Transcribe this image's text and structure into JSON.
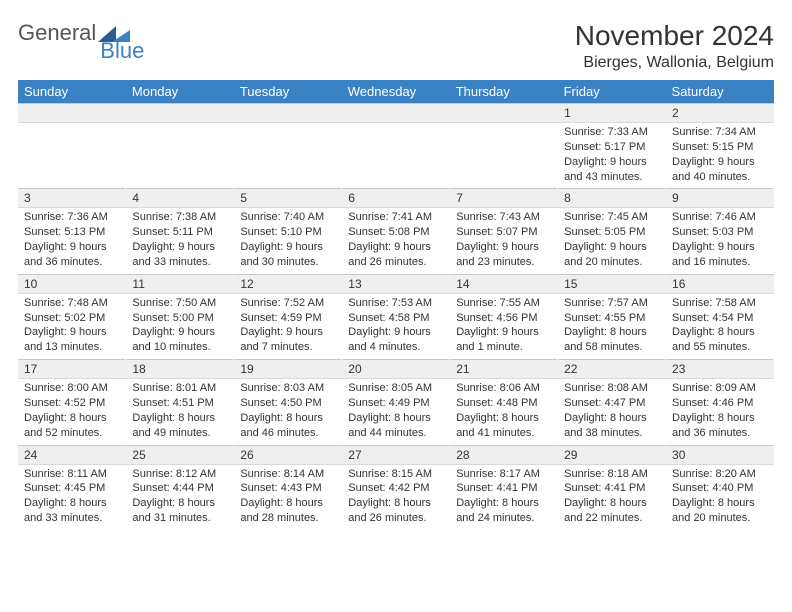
{
  "logo": {
    "part1": "General",
    "part2": "Blue"
  },
  "header": {
    "month": "November 2024",
    "location": "Bierges, Wallonia, Belgium"
  },
  "columns": [
    "Sunday",
    "Monday",
    "Tuesday",
    "Wednesday",
    "Thursday",
    "Friday",
    "Saturday"
  ],
  "colors": {
    "header_bg": "#3b82c4",
    "header_text": "#ffffff",
    "daynum_bg": "#efefef",
    "text": "#222222"
  },
  "fonts": {
    "month_size": 28,
    "location_size": 16,
    "dayheader_size": 13,
    "daynum_size": 12,
    "body_size": 11
  },
  "weeks": [
    {
      "nums": [
        "",
        "",
        "",
        "",
        "",
        "1",
        "2"
      ],
      "cells": [
        {
          "sunrise": "",
          "sunset": "",
          "daylight": ""
        },
        {
          "sunrise": "",
          "sunset": "",
          "daylight": ""
        },
        {
          "sunrise": "",
          "sunset": "",
          "daylight": ""
        },
        {
          "sunrise": "",
          "sunset": "",
          "daylight": ""
        },
        {
          "sunrise": "",
          "sunset": "",
          "daylight": ""
        },
        {
          "sunrise": "Sunrise: 7:33 AM",
          "sunset": "Sunset: 5:17 PM",
          "daylight": "Daylight: 9 hours and 43 minutes."
        },
        {
          "sunrise": "Sunrise: 7:34 AM",
          "sunset": "Sunset: 5:15 PM",
          "daylight": "Daylight: 9 hours and 40 minutes."
        }
      ]
    },
    {
      "nums": [
        "3",
        "4",
        "5",
        "6",
        "7",
        "8",
        "9"
      ],
      "cells": [
        {
          "sunrise": "Sunrise: 7:36 AM",
          "sunset": "Sunset: 5:13 PM",
          "daylight": "Daylight: 9 hours and 36 minutes."
        },
        {
          "sunrise": "Sunrise: 7:38 AM",
          "sunset": "Sunset: 5:11 PM",
          "daylight": "Daylight: 9 hours and 33 minutes."
        },
        {
          "sunrise": "Sunrise: 7:40 AM",
          "sunset": "Sunset: 5:10 PM",
          "daylight": "Daylight: 9 hours and 30 minutes."
        },
        {
          "sunrise": "Sunrise: 7:41 AM",
          "sunset": "Sunset: 5:08 PM",
          "daylight": "Daylight: 9 hours and 26 minutes."
        },
        {
          "sunrise": "Sunrise: 7:43 AM",
          "sunset": "Sunset: 5:07 PM",
          "daylight": "Daylight: 9 hours and 23 minutes."
        },
        {
          "sunrise": "Sunrise: 7:45 AM",
          "sunset": "Sunset: 5:05 PM",
          "daylight": "Daylight: 9 hours and 20 minutes."
        },
        {
          "sunrise": "Sunrise: 7:46 AM",
          "sunset": "Sunset: 5:03 PM",
          "daylight": "Daylight: 9 hours and 16 minutes."
        }
      ]
    },
    {
      "nums": [
        "10",
        "11",
        "12",
        "13",
        "14",
        "15",
        "16"
      ],
      "cells": [
        {
          "sunrise": "Sunrise: 7:48 AM",
          "sunset": "Sunset: 5:02 PM",
          "daylight": "Daylight: 9 hours and 13 minutes."
        },
        {
          "sunrise": "Sunrise: 7:50 AM",
          "sunset": "Sunset: 5:00 PM",
          "daylight": "Daylight: 9 hours and 10 minutes."
        },
        {
          "sunrise": "Sunrise: 7:52 AM",
          "sunset": "Sunset: 4:59 PM",
          "daylight": "Daylight: 9 hours and 7 minutes."
        },
        {
          "sunrise": "Sunrise: 7:53 AM",
          "sunset": "Sunset: 4:58 PM",
          "daylight": "Daylight: 9 hours and 4 minutes."
        },
        {
          "sunrise": "Sunrise: 7:55 AM",
          "sunset": "Sunset: 4:56 PM",
          "daylight": "Daylight: 9 hours and 1 minute."
        },
        {
          "sunrise": "Sunrise: 7:57 AM",
          "sunset": "Sunset: 4:55 PM",
          "daylight": "Daylight: 8 hours and 58 minutes."
        },
        {
          "sunrise": "Sunrise: 7:58 AM",
          "sunset": "Sunset: 4:54 PM",
          "daylight": "Daylight: 8 hours and 55 minutes."
        }
      ]
    },
    {
      "nums": [
        "17",
        "18",
        "19",
        "20",
        "21",
        "22",
        "23"
      ],
      "cells": [
        {
          "sunrise": "Sunrise: 8:00 AM",
          "sunset": "Sunset: 4:52 PM",
          "daylight": "Daylight: 8 hours and 52 minutes."
        },
        {
          "sunrise": "Sunrise: 8:01 AM",
          "sunset": "Sunset: 4:51 PM",
          "daylight": "Daylight: 8 hours and 49 minutes."
        },
        {
          "sunrise": "Sunrise: 8:03 AM",
          "sunset": "Sunset: 4:50 PM",
          "daylight": "Daylight: 8 hours and 46 minutes."
        },
        {
          "sunrise": "Sunrise: 8:05 AM",
          "sunset": "Sunset: 4:49 PM",
          "daylight": "Daylight: 8 hours and 44 minutes."
        },
        {
          "sunrise": "Sunrise: 8:06 AM",
          "sunset": "Sunset: 4:48 PM",
          "daylight": "Daylight: 8 hours and 41 minutes."
        },
        {
          "sunrise": "Sunrise: 8:08 AM",
          "sunset": "Sunset: 4:47 PM",
          "daylight": "Daylight: 8 hours and 38 minutes."
        },
        {
          "sunrise": "Sunrise: 8:09 AM",
          "sunset": "Sunset: 4:46 PM",
          "daylight": "Daylight: 8 hours and 36 minutes."
        }
      ]
    },
    {
      "nums": [
        "24",
        "25",
        "26",
        "27",
        "28",
        "29",
        "30"
      ],
      "cells": [
        {
          "sunrise": "Sunrise: 8:11 AM",
          "sunset": "Sunset: 4:45 PM",
          "daylight": "Daylight: 8 hours and 33 minutes."
        },
        {
          "sunrise": "Sunrise: 8:12 AM",
          "sunset": "Sunset: 4:44 PM",
          "daylight": "Daylight: 8 hours and 31 minutes."
        },
        {
          "sunrise": "Sunrise: 8:14 AM",
          "sunset": "Sunset: 4:43 PM",
          "daylight": "Daylight: 8 hours and 28 minutes."
        },
        {
          "sunrise": "Sunrise: 8:15 AM",
          "sunset": "Sunset: 4:42 PM",
          "daylight": "Daylight: 8 hours and 26 minutes."
        },
        {
          "sunrise": "Sunrise: 8:17 AM",
          "sunset": "Sunset: 4:41 PM",
          "daylight": "Daylight: 8 hours and 24 minutes."
        },
        {
          "sunrise": "Sunrise: 8:18 AM",
          "sunset": "Sunset: 4:41 PM",
          "daylight": "Daylight: 8 hours and 22 minutes."
        },
        {
          "sunrise": "Sunrise: 8:20 AM",
          "sunset": "Sunset: 4:40 PM",
          "daylight": "Daylight: 8 hours and 20 minutes."
        }
      ]
    }
  ]
}
